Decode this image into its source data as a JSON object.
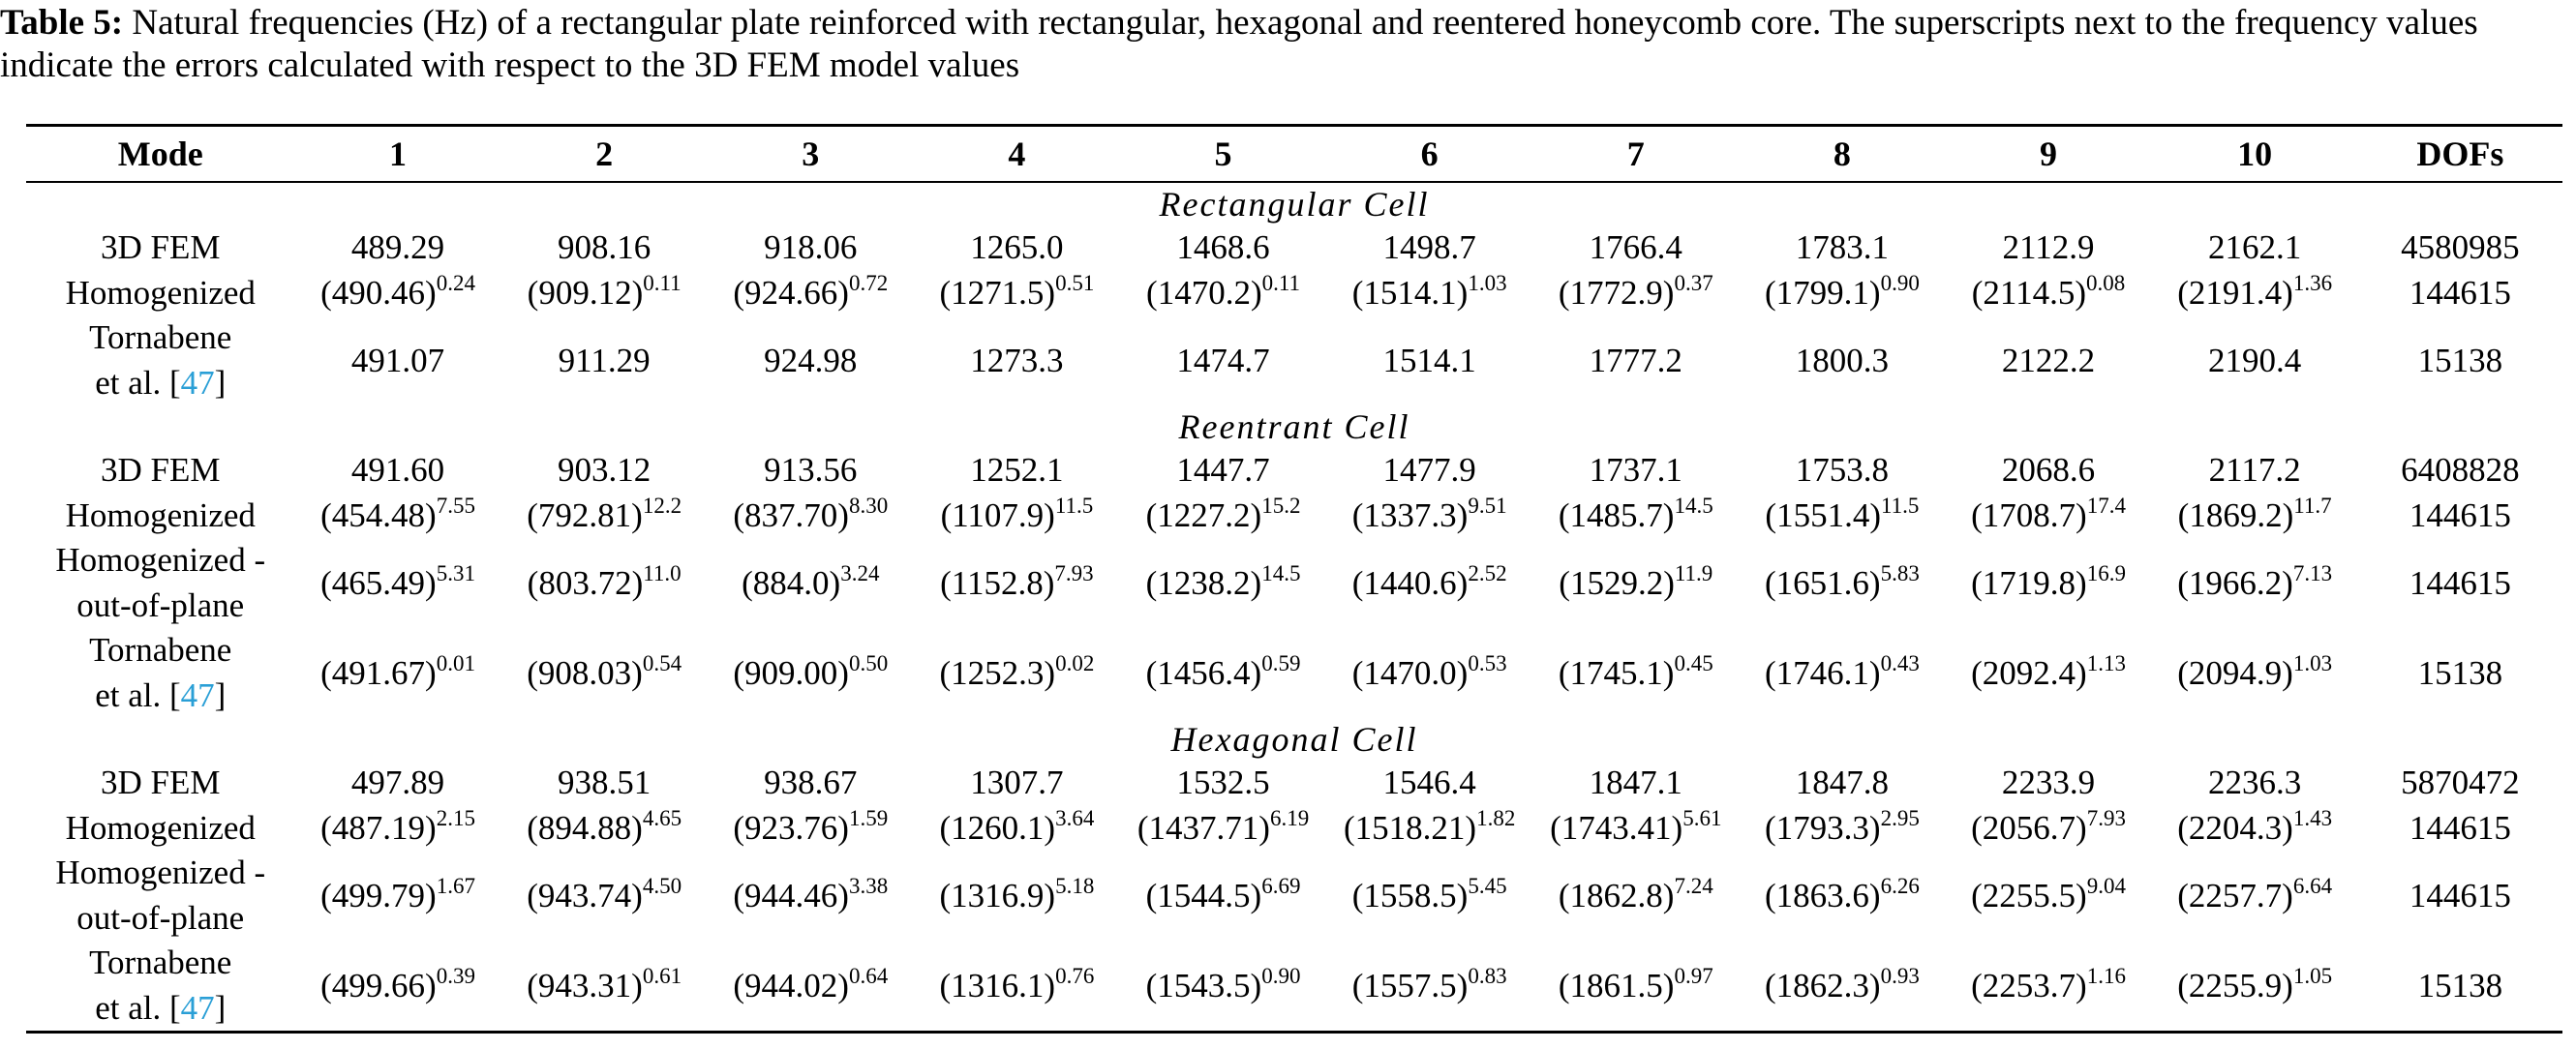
{
  "caption": {
    "label": "Table 5:",
    "text": "Natural frequencies (Hz) of a rectangular plate reinforced with rectangular, hexagonal and reentered honeycomb core. The superscripts next to the frequency values indicate the errors calculated with respect to the 3D FEM model values"
  },
  "header": [
    "Mode",
    "1",
    "2",
    "3",
    "4",
    "5",
    "6",
    "7",
    "8",
    "9",
    "10",
    "DOFs"
  ],
  "sections": [
    {
      "title": "Rectangular Cell",
      "rows": [
        {
          "label": "3D FEM",
          "label2": "",
          "cite": "",
          "cells": [
            {
              "v": "489.29",
              "e": ""
            },
            {
              "v": "908.16",
              "e": ""
            },
            {
              "v": "918.06",
              "e": ""
            },
            {
              "v": "1265.0",
              "e": ""
            },
            {
              "v": "1468.6",
              "e": ""
            },
            {
              "v": "1498.7",
              "e": ""
            },
            {
              "v": "1766.4",
              "e": ""
            },
            {
              "v": "1783.1",
              "e": ""
            },
            {
              "v": "2112.9",
              "e": ""
            },
            {
              "v": "2162.1",
              "e": ""
            }
          ],
          "dofs": "4580985"
        },
        {
          "label": "Homogenized",
          "label2": "",
          "cite": "",
          "cells": [
            {
              "v": "(490.46)",
              "e": "0.24"
            },
            {
              "v": "(909.12)",
              "e": "0.11"
            },
            {
              "v": "(924.66)",
              "e": "0.72"
            },
            {
              "v": "(1271.5)",
              "e": "0.51"
            },
            {
              "v": "(1470.2)",
              "e": "0.11"
            },
            {
              "v": "(1514.1)",
              "e": "1.03"
            },
            {
              "v": "(1772.9)",
              "e": "0.37"
            },
            {
              "v": "(1799.1)",
              "e": "0.90"
            },
            {
              "v": "(2114.5)",
              "e": "0.08"
            },
            {
              "v": "(2191.4)",
              "e": "1.36"
            }
          ],
          "dofs": "144615"
        },
        {
          "label": "Tornabene",
          "label2": "et al. [",
          "cite": "47",
          "cells": [
            {
              "v": "491.07",
              "e": ""
            },
            {
              "v": "911.29",
              "e": ""
            },
            {
              "v": "924.98",
              "e": ""
            },
            {
              "v": "1273.3",
              "e": ""
            },
            {
              "v": "1474.7",
              "e": ""
            },
            {
              "v": "1514.1",
              "e": ""
            },
            {
              "v": "1777.2",
              "e": ""
            },
            {
              "v": "1800.3",
              "e": ""
            },
            {
              "v": "2122.2",
              "e": ""
            },
            {
              "v": "2190.4",
              "e": ""
            }
          ],
          "dofs": "15138"
        }
      ]
    },
    {
      "title": "Reentrant Cell",
      "rows": [
        {
          "label": "3D FEM",
          "label2": "",
          "cite": "",
          "cells": [
            {
              "v": "491.60",
              "e": ""
            },
            {
              "v": "903.12",
              "e": ""
            },
            {
              "v": "913.56",
              "e": ""
            },
            {
              "v": "1252.1",
              "e": ""
            },
            {
              "v": "1447.7",
              "e": ""
            },
            {
              "v": "1477.9",
              "e": ""
            },
            {
              "v": "1737.1",
              "e": ""
            },
            {
              "v": "1753.8",
              "e": ""
            },
            {
              "v": "2068.6",
              "e": ""
            },
            {
              "v": "2117.2",
              "e": ""
            }
          ],
          "dofs": "6408828"
        },
        {
          "label": "Homogenized",
          "label2": "",
          "cite": "",
          "cells": [
            {
              "v": "(454.48)",
              "e": "7.55"
            },
            {
              "v": "(792.81)",
              "e": "12.2"
            },
            {
              "v": "(837.70)",
              "e": "8.30"
            },
            {
              "v": "(1107.9)",
              "e": "11.5"
            },
            {
              "v": "(1227.2)",
              "e": "15.2"
            },
            {
              "v": "(1337.3)",
              "e": "9.51"
            },
            {
              "v": "(1485.7)",
              "e": "14.5"
            },
            {
              "v": "(1551.4)",
              "e": "11.5"
            },
            {
              "v": "(1708.7)",
              "e": "17.4"
            },
            {
              "v": "(1869.2)",
              "e": "11.7"
            }
          ],
          "dofs": "144615"
        },
        {
          "label": "Homogenized -",
          "label2": "out-of-plane",
          "cite": "",
          "cells": [
            {
              "v": "(465.49)",
              "e": "5.31"
            },
            {
              "v": "(803.72)",
              "e": "11.0"
            },
            {
              "v": "(884.0)",
              "e": "3.24"
            },
            {
              "v": "(1152.8)",
              "e": "7.93"
            },
            {
              "v": "(1238.2)",
              "e": "14.5"
            },
            {
              "v": "(1440.6)",
              "e": "2.52"
            },
            {
              "v": "(1529.2)",
              "e": "11.9"
            },
            {
              "v": "(1651.6)",
              "e": "5.83"
            },
            {
              "v": "(1719.8)",
              "e": "16.9"
            },
            {
              "v": "(1966.2)",
              "e": "7.13"
            }
          ],
          "dofs": "144615"
        },
        {
          "label": "Tornabene",
          "label2": "et al. [",
          "cite": "47",
          "cells": [
            {
              "v": "(491.67)",
              "e": "0.01"
            },
            {
              "v": "(908.03)",
              "e": "0.54"
            },
            {
              "v": "(909.00)",
              "e": "0.50"
            },
            {
              "v": "(1252.3)",
              "e": "0.02"
            },
            {
              "v": "(1456.4)",
              "e": "0.59"
            },
            {
              "v": "(1470.0)",
              "e": "0.53"
            },
            {
              "v": "(1745.1)",
              "e": "0.45"
            },
            {
              "v": "(1746.1)",
              "e": "0.43"
            },
            {
              "v": "(2092.4)",
              "e": "1.13"
            },
            {
              "v": "(2094.9)",
              "e": "1.03"
            }
          ],
          "dofs": "15138"
        }
      ]
    },
    {
      "title": "Hexagonal Cell",
      "rows": [
        {
          "label": "3D FEM",
          "label2": "",
          "cite": "",
          "cells": [
            {
              "v": "497.89",
              "e": ""
            },
            {
              "v": "938.51",
              "e": ""
            },
            {
              "v": "938.67",
              "e": ""
            },
            {
              "v": "1307.7",
              "e": ""
            },
            {
              "v": "1532.5",
              "e": ""
            },
            {
              "v": "1546.4",
              "e": ""
            },
            {
              "v": "1847.1",
              "e": ""
            },
            {
              "v": "1847.8",
              "e": ""
            },
            {
              "v": "2233.9",
              "e": ""
            },
            {
              "v": "2236.3",
              "e": ""
            }
          ],
          "dofs": "5870472"
        },
        {
          "label": "Homogenized",
          "label2": "",
          "cite": "",
          "cells": [
            {
              "v": "(487.19)",
              "e": "2.15"
            },
            {
              "v": "(894.88)",
              "e": "4.65"
            },
            {
              "v": "(923.76)",
              "e": "1.59"
            },
            {
              "v": "(1260.1)",
              "e": "3.64"
            },
            {
              "v": "(1437.71)",
              "e": "6.19"
            },
            {
              "v": "(1518.21)",
              "e": "1.82"
            },
            {
              "v": "(1743.41)",
              "e": "5.61"
            },
            {
              "v": "(1793.3)",
              "e": "2.95"
            },
            {
              "v": "(2056.7)",
              "e": "7.93"
            },
            {
              "v": "(2204.3)",
              "e": "1.43"
            }
          ],
          "dofs": "144615"
        },
        {
          "label": "Homogenized -",
          "label2": "out-of-plane",
          "cite": "",
          "cells": [
            {
              "v": "(499.79)",
              "e": "1.67"
            },
            {
              "v": "(943.74)",
              "e": "4.50"
            },
            {
              "v": "(944.46)",
              "e": "3.38"
            },
            {
              "v": "(1316.9)",
              "e": "5.18"
            },
            {
              "v": "(1544.5)",
              "e": "6.69"
            },
            {
              "v": "(1558.5)",
              "e": "5.45"
            },
            {
              "v": "(1862.8)",
              "e": "7.24"
            },
            {
              "v": "(1863.6)",
              "e": "6.26"
            },
            {
              "v": "(2255.5)",
              "e": "9.04"
            },
            {
              "v": "(2257.7)",
              "e": "6.64"
            }
          ],
          "dofs": "144615"
        },
        {
          "label": "Tornabene",
          "label2": "et al. [",
          "cite": "47",
          "cells": [
            {
              "v": "(499.66)",
              "e": "0.39"
            },
            {
              "v": "(943.31)",
              "e": "0.61"
            },
            {
              "v": "(944.02)",
              "e": "0.64"
            },
            {
              "v": "(1316.1)",
              "e": "0.76"
            },
            {
              "v": "(1543.5)",
              "e": "0.90"
            },
            {
              "v": "(1557.5)",
              "e": "0.83"
            },
            {
              "v": "(1861.5)",
              "e": "0.97"
            },
            {
              "v": "(1862.3)",
              "e": "0.93"
            },
            {
              "v": "(2253.7)",
              "e": "1.16"
            },
            {
              "v": "(2255.9)",
              "e": "1.05"
            }
          ],
          "dofs": "15138"
        }
      ]
    }
  ],
  "cite_close": "]",
  "colors": {
    "text": "#000000",
    "citation": "#2a9fd6"
  }
}
